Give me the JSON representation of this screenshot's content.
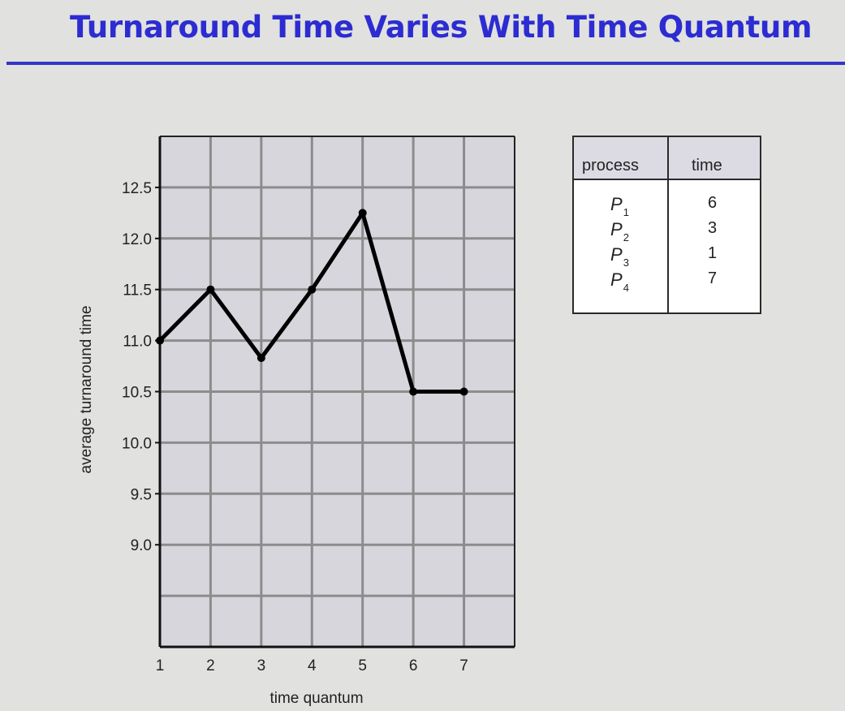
{
  "slide": {
    "title": "Turnaround Time Varies With Time Quantum"
  },
  "chart_data": {
    "type": "line",
    "title": "",
    "xlabel": "time quantum",
    "ylabel": "average turnaround time",
    "x": [
      1,
      2,
      3,
      4,
      5,
      6,
      7
    ],
    "series": [
      {
        "values": [
          11.0,
          11.5,
          10.83,
          11.5,
          12.25,
          10.5,
          10.5
        ]
      }
    ],
    "x_ticks": [
      "1",
      "2",
      "3",
      "4",
      "5",
      "6",
      "7"
    ],
    "y_ticks": [
      "9.0",
      "9.5",
      "10.0",
      "10.5",
      "11.0",
      "11.5",
      "12.0",
      "12.5"
    ],
    "xlim": [
      1,
      8
    ],
    "ylim": [
      8.0,
      13.0
    ],
    "grid": true,
    "colors": {
      "plot_background": "#d7d6dd",
      "grid": "#8c8c8c",
      "line": "#000000"
    }
  },
  "process_table": {
    "headers": {
      "process": "process",
      "time": "time"
    },
    "rows": [
      {
        "name": "P",
        "sub": "1",
        "time": "6"
      },
      {
        "name": "P",
        "sub": "2",
        "time": "3"
      },
      {
        "name": "P",
        "sub": "3",
        "time": "1"
      },
      {
        "name": "P",
        "sub": "4",
        "time": "7"
      }
    ]
  }
}
